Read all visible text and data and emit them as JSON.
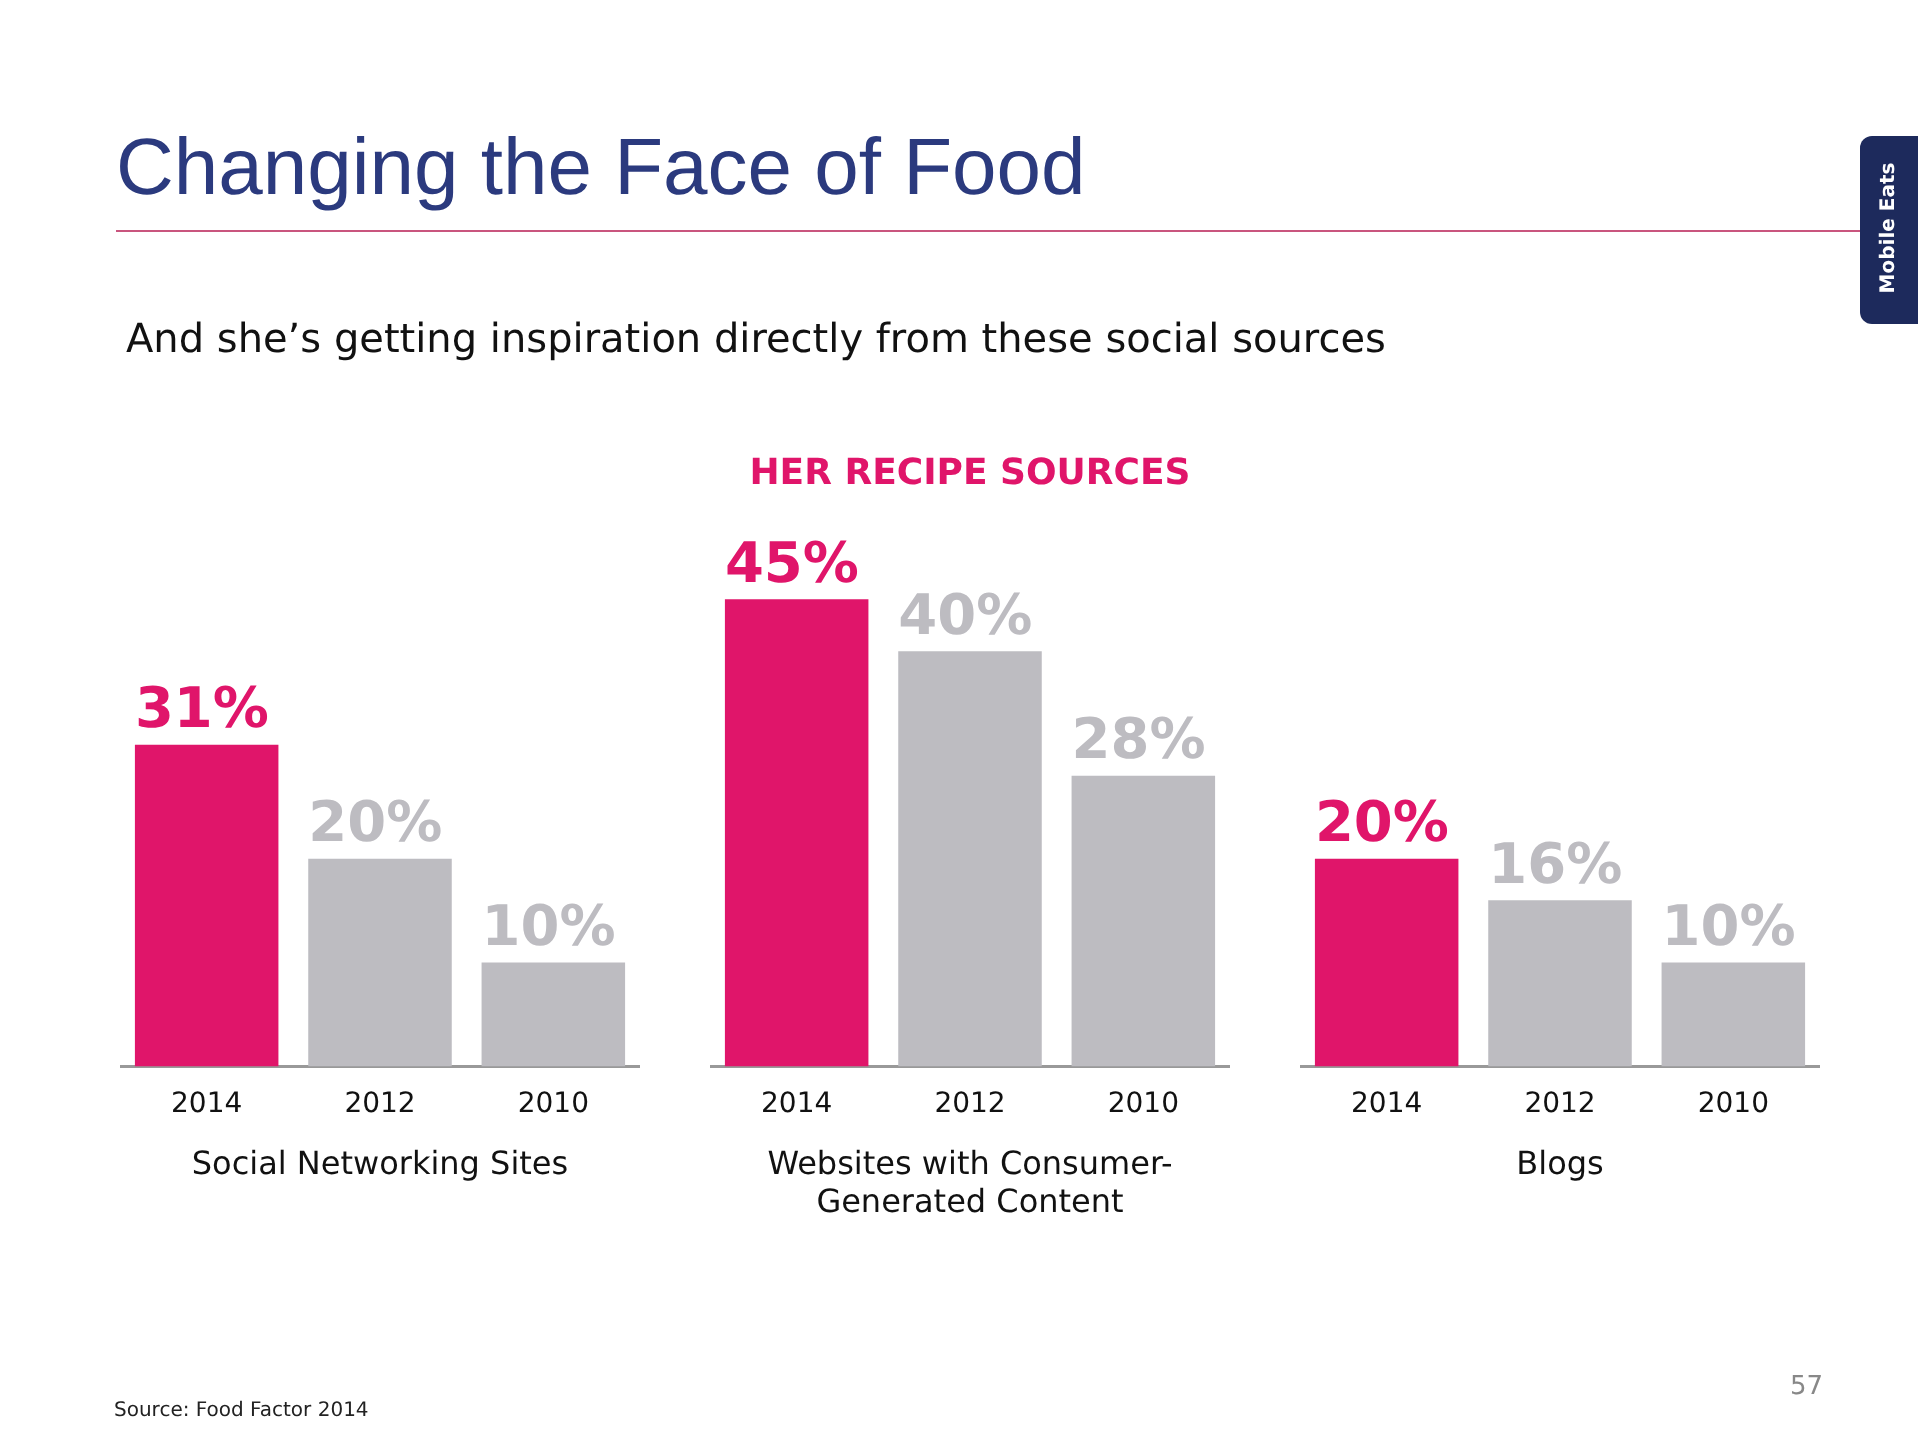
{
  "chart_data": [
    {
      "type": "bar",
      "title": "Changing the Face of Food",
      "subtitle": "And she’s getting inspiration directly from these social sources",
      "categories": [
        "2014",
        "2012",
        "2010"
      ],
      "values": [
        31,
        20,
        10
      ],
      "value_labels": [
        "31%",
        "20%",
        "10%"
      ],
      "colors": [
        "#e0156a",
        "#bdbcc1",
        "#bdbcc1"
      ],
      "xlabel": "Social Networking Sites",
      "tick_labels": "x",
      "annotations": [
        "Source: Food Factor 2014"
      ]
    },
    {
      "type": "bar",
      "title": "HER RECIPE SOURCES",
      "categories": [
        "2014",
        "2012",
        "2010"
      ],
      "values": [
        45,
        40,
        28
      ],
      "value_labels": [
        "45%",
        "40%",
        "28%"
      ],
      "colors": [
        "#e0156a",
        "#bdbcc1",
        "#bdbcc1"
      ],
      "xlabel": "Websites with Consumer-Generated Content",
      "tick_labels": "x"
    },
    {
      "type": "bar",
      "categories": [
        "2014",
        "2012",
        "2010"
      ],
      "values": [
        20,
        16,
        10
      ],
      "value_labels": [
        "20%",
        "16%",
        "10%"
      ],
      "colors": [
        "#e0156a",
        "#bdbcc1",
        "#bdbcc1"
      ],
      "xlabel": "Blogs",
      "tick_labels": "x",
      "annotations": [
        "57",
        "Mobile Eats"
      ]
    }
  ]
}
